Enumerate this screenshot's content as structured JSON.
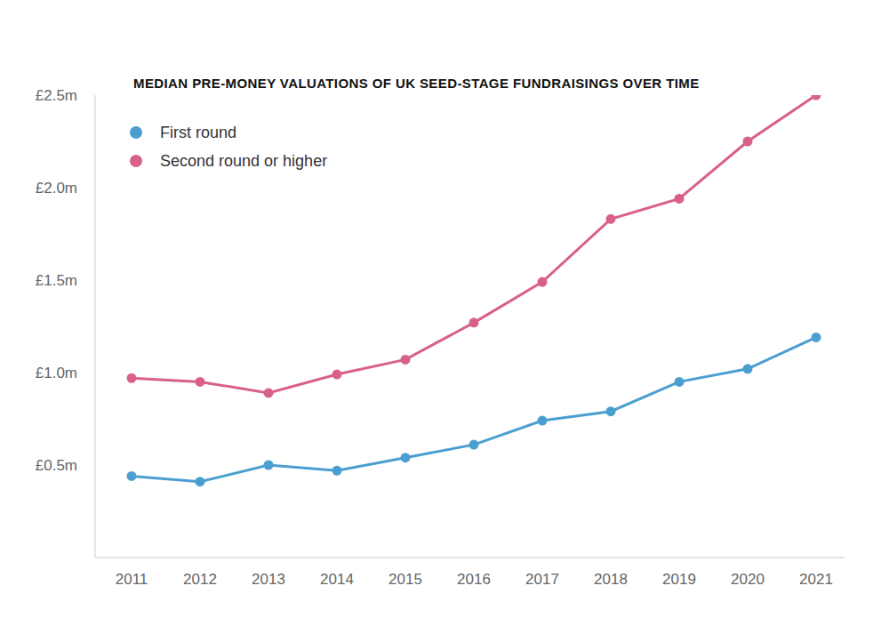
{
  "chart_data": {
    "type": "line",
    "title": "MEDIAN PRE-MONEY VALUATIONS OF UK SEED-STAGE FUNDRAISINGS OVER TIME",
    "categories": [
      "2011",
      "2012",
      "2013",
      "2014",
      "2015",
      "2016",
      "2017",
      "2018",
      "2019",
      "2020",
      "2021"
    ],
    "series": [
      {
        "name": "First round",
        "color": "#4a9fd0",
        "values": [
          0.44,
          0.41,
          0.5,
          0.47,
          0.54,
          0.61,
          0.74,
          0.79,
          0.95,
          1.02,
          1.19
        ]
      },
      {
        "name": "Second round or higher",
        "color": "#d9608a",
        "values": [
          0.97,
          0.95,
          0.89,
          0.99,
          1.07,
          1.27,
          1.49,
          1.83,
          1.94,
          2.25,
          2.5
        ]
      }
    ],
    "ylim": [
      0,
      2.5
    ],
    "yticks": [
      {
        "value": 0.5,
        "label": "£0.5m"
      },
      {
        "value": 1.0,
        "label": "£1.0m"
      },
      {
        "value": 1.5,
        "label": "£1.5m"
      },
      {
        "value": 2.0,
        "label": "£2.0m"
      },
      {
        "value": 2.5,
        "label": "£2.5m"
      }
    ],
    "grid": false,
    "legend": "upper left",
    "marker": "circle"
  }
}
